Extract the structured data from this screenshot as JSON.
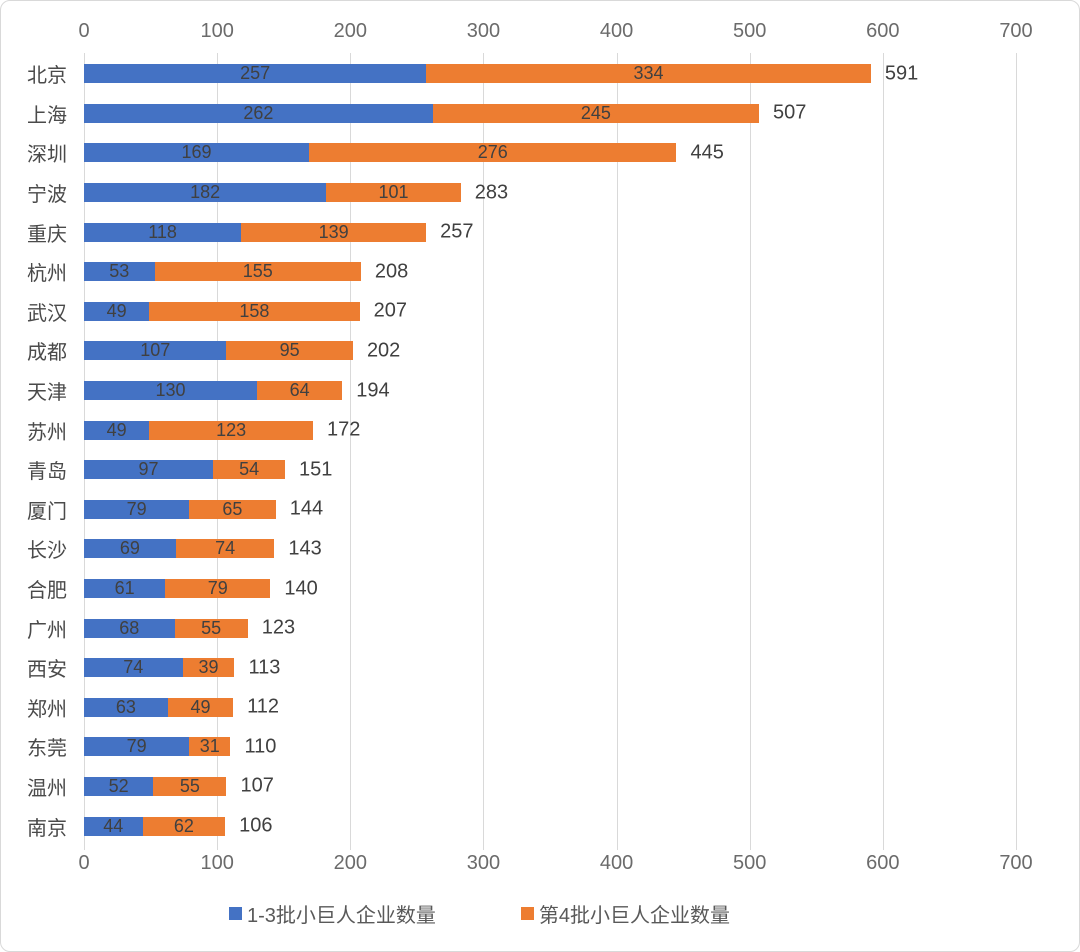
{
  "chart_data": {
    "type": "bar",
    "orientation": "horizontal",
    "stacked": true,
    "title": "",
    "xlabel": "",
    "ylabel": "",
    "xlim": [
      0,
      700
    ],
    "x_ticks": [
      0,
      100,
      200,
      300,
      400,
      500,
      600,
      700
    ],
    "grid": true,
    "legend_position": "bottom",
    "categories": [
      "北京",
      "上海",
      "深圳",
      "宁波",
      "重庆",
      "杭州",
      "武汉",
      "成都",
      "天津",
      "苏州",
      "青岛",
      "厦门",
      "长沙",
      "合肥",
      "广州",
      "西安",
      "郑州",
      "东莞",
      "温州",
      "南京"
    ],
    "series": [
      {
        "name": "1-3批小巨人企业数量",
        "color": "#4472C4",
        "values": [
          257,
          262,
          169,
          182,
          118,
          53,
          49,
          107,
          130,
          49,
          97,
          79,
          69,
          61,
          68,
          74,
          63,
          79,
          52,
          44
        ]
      },
      {
        "name": "第4批小巨人企业数量",
        "color": "#ED7D31",
        "values": [
          334,
          245,
          276,
          101,
          139,
          155,
          158,
          95,
          64,
          123,
          54,
          65,
          74,
          79,
          55,
          39,
          49,
          31,
          55,
          62
        ]
      }
    ],
    "totals": [
      591,
      507,
      445,
      283,
      257,
      208,
      207,
      202,
      194,
      172,
      151,
      144,
      143,
      140,
      123,
      113,
      112,
      110,
      107,
      106
    ]
  },
  "colors": {
    "series1": "#4472C4",
    "series2": "#ED7D31",
    "gridline": "#D9D9D9",
    "axis_text": "#6B6B6B",
    "label_text": "#404040"
  }
}
